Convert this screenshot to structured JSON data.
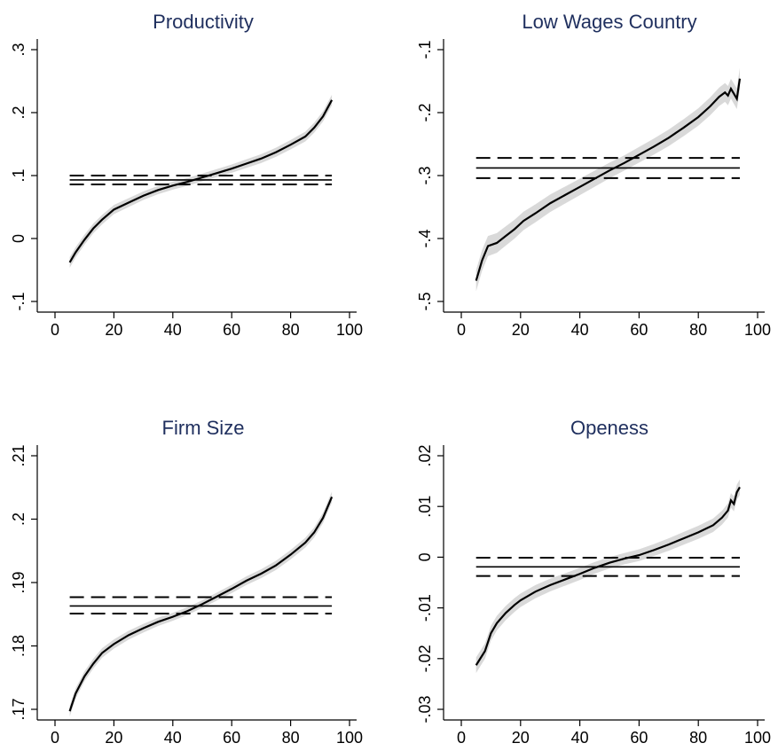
{
  "chart_data": [
    {
      "type": "line",
      "title": "Productivity",
      "xlabel": "",
      "ylabel": "",
      "xlim": [
        0,
        100
      ],
      "ylim": [
        -0.1,
        0.3
      ],
      "x_ticks": [
        0,
        20,
        40,
        60,
        80,
        100
      ],
      "x_tick_labels": [
        "0",
        "20",
        "40",
        "60",
        "80",
        "100"
      ],
      "y_ticks": [
        -0.1,
        0,
        0.1,
        0.2,
        0.3
      ],
      "y_tick_labels": [
        "-.1",
        "0",
        ".1",
        ".2",
        ".3"
      ],
      "series": [
        {
          "role": "quantile-estimate",
          "x": [
            5,
            7,
            10,
            13,
            16,
            20,
            25,
            30,
            35,
            40,
            45,
            50,
            55,
            60,
            65,
            70,
            75,
            80,
            85,
            88,
            91,
            94
          ],
          "y": [
            -0.038,
            -0.022,
            -0.002,
            0.016,
            0.03,
            0.046,
            0.057,
            0.068,
            0.077,
            0.084,
            0.09,
            0.097,
            0.104,
            0.111,
            0.119,
            0.127,
            0.137,
            0.149,
            0.162,
            0.176,
            0.194,
            0.22
          ]
        }
      ],
      "band_halfwidth": 0.006,
      "ols_estimate": 0.093,
      "ols_ci": [
        0.086,
        0.1
      ]
    },
    {
      "type": "line",
      "title": "Low Wages Country",
      "xlabel": "",
      "ylabel": "",
      "xlim": [
        0,
        100
      ],
      "ylim": [
        -0.5,
        -0.1
      ],
      "x_ticks": [
        0,
        20,
        40,
        60,
        80,
        100
      ],
      "x_tick_labels": [
        "0",
        "20",
        "40",
        "60",
        "80",
        "100"
      ],
      "y_ticks": [
        -0.5,
        -0.4,
        -0.3,
        -0.2,
        -0.1
      ],
      "y_tick_labels": [
        "-.5",
        "-.4",
        "-.3",
        "-.2",
        "-.1"
      ],
      "series": [
        {
          "role": "quantile-estimate",
          "x": [
            5,
            7,
            9,
            12,
            15,
            18,
            21,
            25,
            30,
            35,
            40,
            45,
            50,
            55,
            60,
            65,
            70,
            75,
            80,
            84,
            87,
            89,
            90,
            91,
            92,
            93,
            94
          ],
          "y": [
            -0.467,
            -0.435,
            -0.412,
            -0.407,
            -0.396,
            -0.385,
            -0.372,
            -0.36,
            -0.344,
            -0.331,
            -0.318,
            -0.305,
            -0.292,
            -0.28,
            -0.267,
            -0.254,
            -0.24,
            -0.224,
            -0.207,
            -0.19,
            -0.175,
            -0.168,
            -0.173,
            -0.162,
            -0.17,
            -0.178,
            -0.146
          ]
        }
      ],
      "band_halfwidth": 0.012,
      "ols_estimate": -0.288,
      "ols_ci": [
        -0.304,
        -0.272
      ]
    },
    {
      "type": "line",
      "title": "Firm Size",
      "xlabel": "",
      "ylabel": "",
      "xlim": [
        0,
        100
      ],
      "ylim": [
        0.17,
        0.21
      ],
      "x_ticks": [
        0,
        20,
        40,
        60,
        80,
        100
      ],
      "x_tick_labels": [
        "0",
        "20",
        "40",
        "60",
        "80",
        "100"
      ],
      "y_ticks": [
        0.17,
        0.18,
        0.19,
        0.2,
        0.21
      ],
      "y_tick_labels": [
        ".17",
        ".18",
        ".19",
        ".2",
        ".21"
      ],
      "series": [
        {
          "role": "quantile-estimate",
          "x": [
            5,
            7,
            10,
            13,
            16,
            20,
            25,
            30,
            35,
            40,
            45,
            50,
            55,
            60,
            65,
            70,
            75,
            80,
            85,
            88,
            91,
            94
          ],
          "y": [
            0.1697,
            0.1725,
            0.1752,
            0.1772,
            0.1789,
            0.1803,
            0.1817,
            0.1828,
            0.1838,
            0.1846,
            0.1855,
            0.1866,
            0.1878,
            0.189,
            0.1903,
            0.1914,
            0.1927,
            0.1944,
            0.1963,
            0.1979,
            0.2002,
            0.2035
          ]
        }
      ],
      "band_halfwidth": 0.0006,
      "ols_estimate": 0.1863,
      "ols_ci": [
        0.1851,
        0.1877
      ]
    },
    {
      "type": "line",
      "title": "Openess",
      "xlabel": "",
      "ylabel": "",
      "xlim": [
        0,
        100
      ],
      "ylim": [
        -0.03,
        0.02
      ],
      "x_ticks": [
        0,
        20,
        40,
        60,
        80,
        100
      ],
      "x_tick_labels": [
        "0",
        "20",
        "40",
        "60",
        "80",
        "100"
      ],
      "y_ticks": [
        -0.03,
        -0.02,
        -0.01,
        0,
        0.01,
        0.02
      ],
      "y_tick_labels": [
        "-.03",
        "-.02",
        "-.01",
        "0",
        ".01",
        ".02"
      ],
      "series": [
        {
          "role": "quantile-estimate",
          "x": [
            5,
            8,
            10,
            12,
            15,
            18,
            20,
            25,
            30,
            35,
            40,
            45,
            50,
            55,
            60,
            65,
            70,
            75,
            80,
            85,
            88,
            90,
            91,
            92,
            93,
            94
          ],
          "y": [
            -0.0213,
            -0.0185,
            -0.015,
            -0.013,
            -0.011,
            -0.0094,
            -0.0085,
            -0.0068,
            -0.0055,
            -0.0044,
            -0.0033,
            -0.0021,
            -0.0011,
            -0.0003,
            0.0004,
            0.0014,
            0.0025,
            0.0037,
            0.0049,
            0.0063,
            0.0078,
            0.0092,
            0.0112,
            0.0105,
            0.0128,
            0.0138
          ]
        }
      ],
      "band_halfwidth": 0.0011,
      "ols_estimate": -0.0019,
      "ols_ci": [
        -0.0037,
        -0.0001
      ]
    }
  ]
}
